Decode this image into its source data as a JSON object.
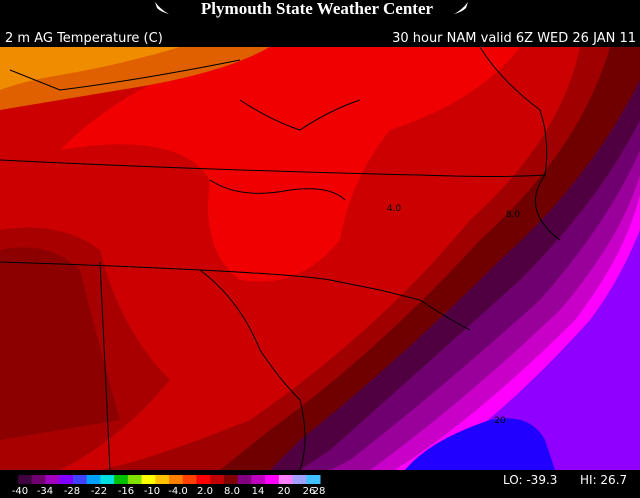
{
  "header": {
    "title": "Plymouth State Weather Center",
    "field": "2 m AG Temperature (C)",
    "valid": "30 hour NAM valid 6Z WED 26 JAN 11"
  },
  "contour_labels": [
    "4.0",
    "8.0",
    "20"
  ],
  "colorbar": {
    "labels": [
      "-40",
      "-34",
      "-28",
      "-22",
      "-16",
      "-10",
      "-4.0",
      "2.0",
      "8.0",
      "14",
      "20",
      "26",
      "28"
    ]
  },
  "stats": {
    "lo": "LO: -39.3",
    "hi": "HI: 26.7"
  }
}
